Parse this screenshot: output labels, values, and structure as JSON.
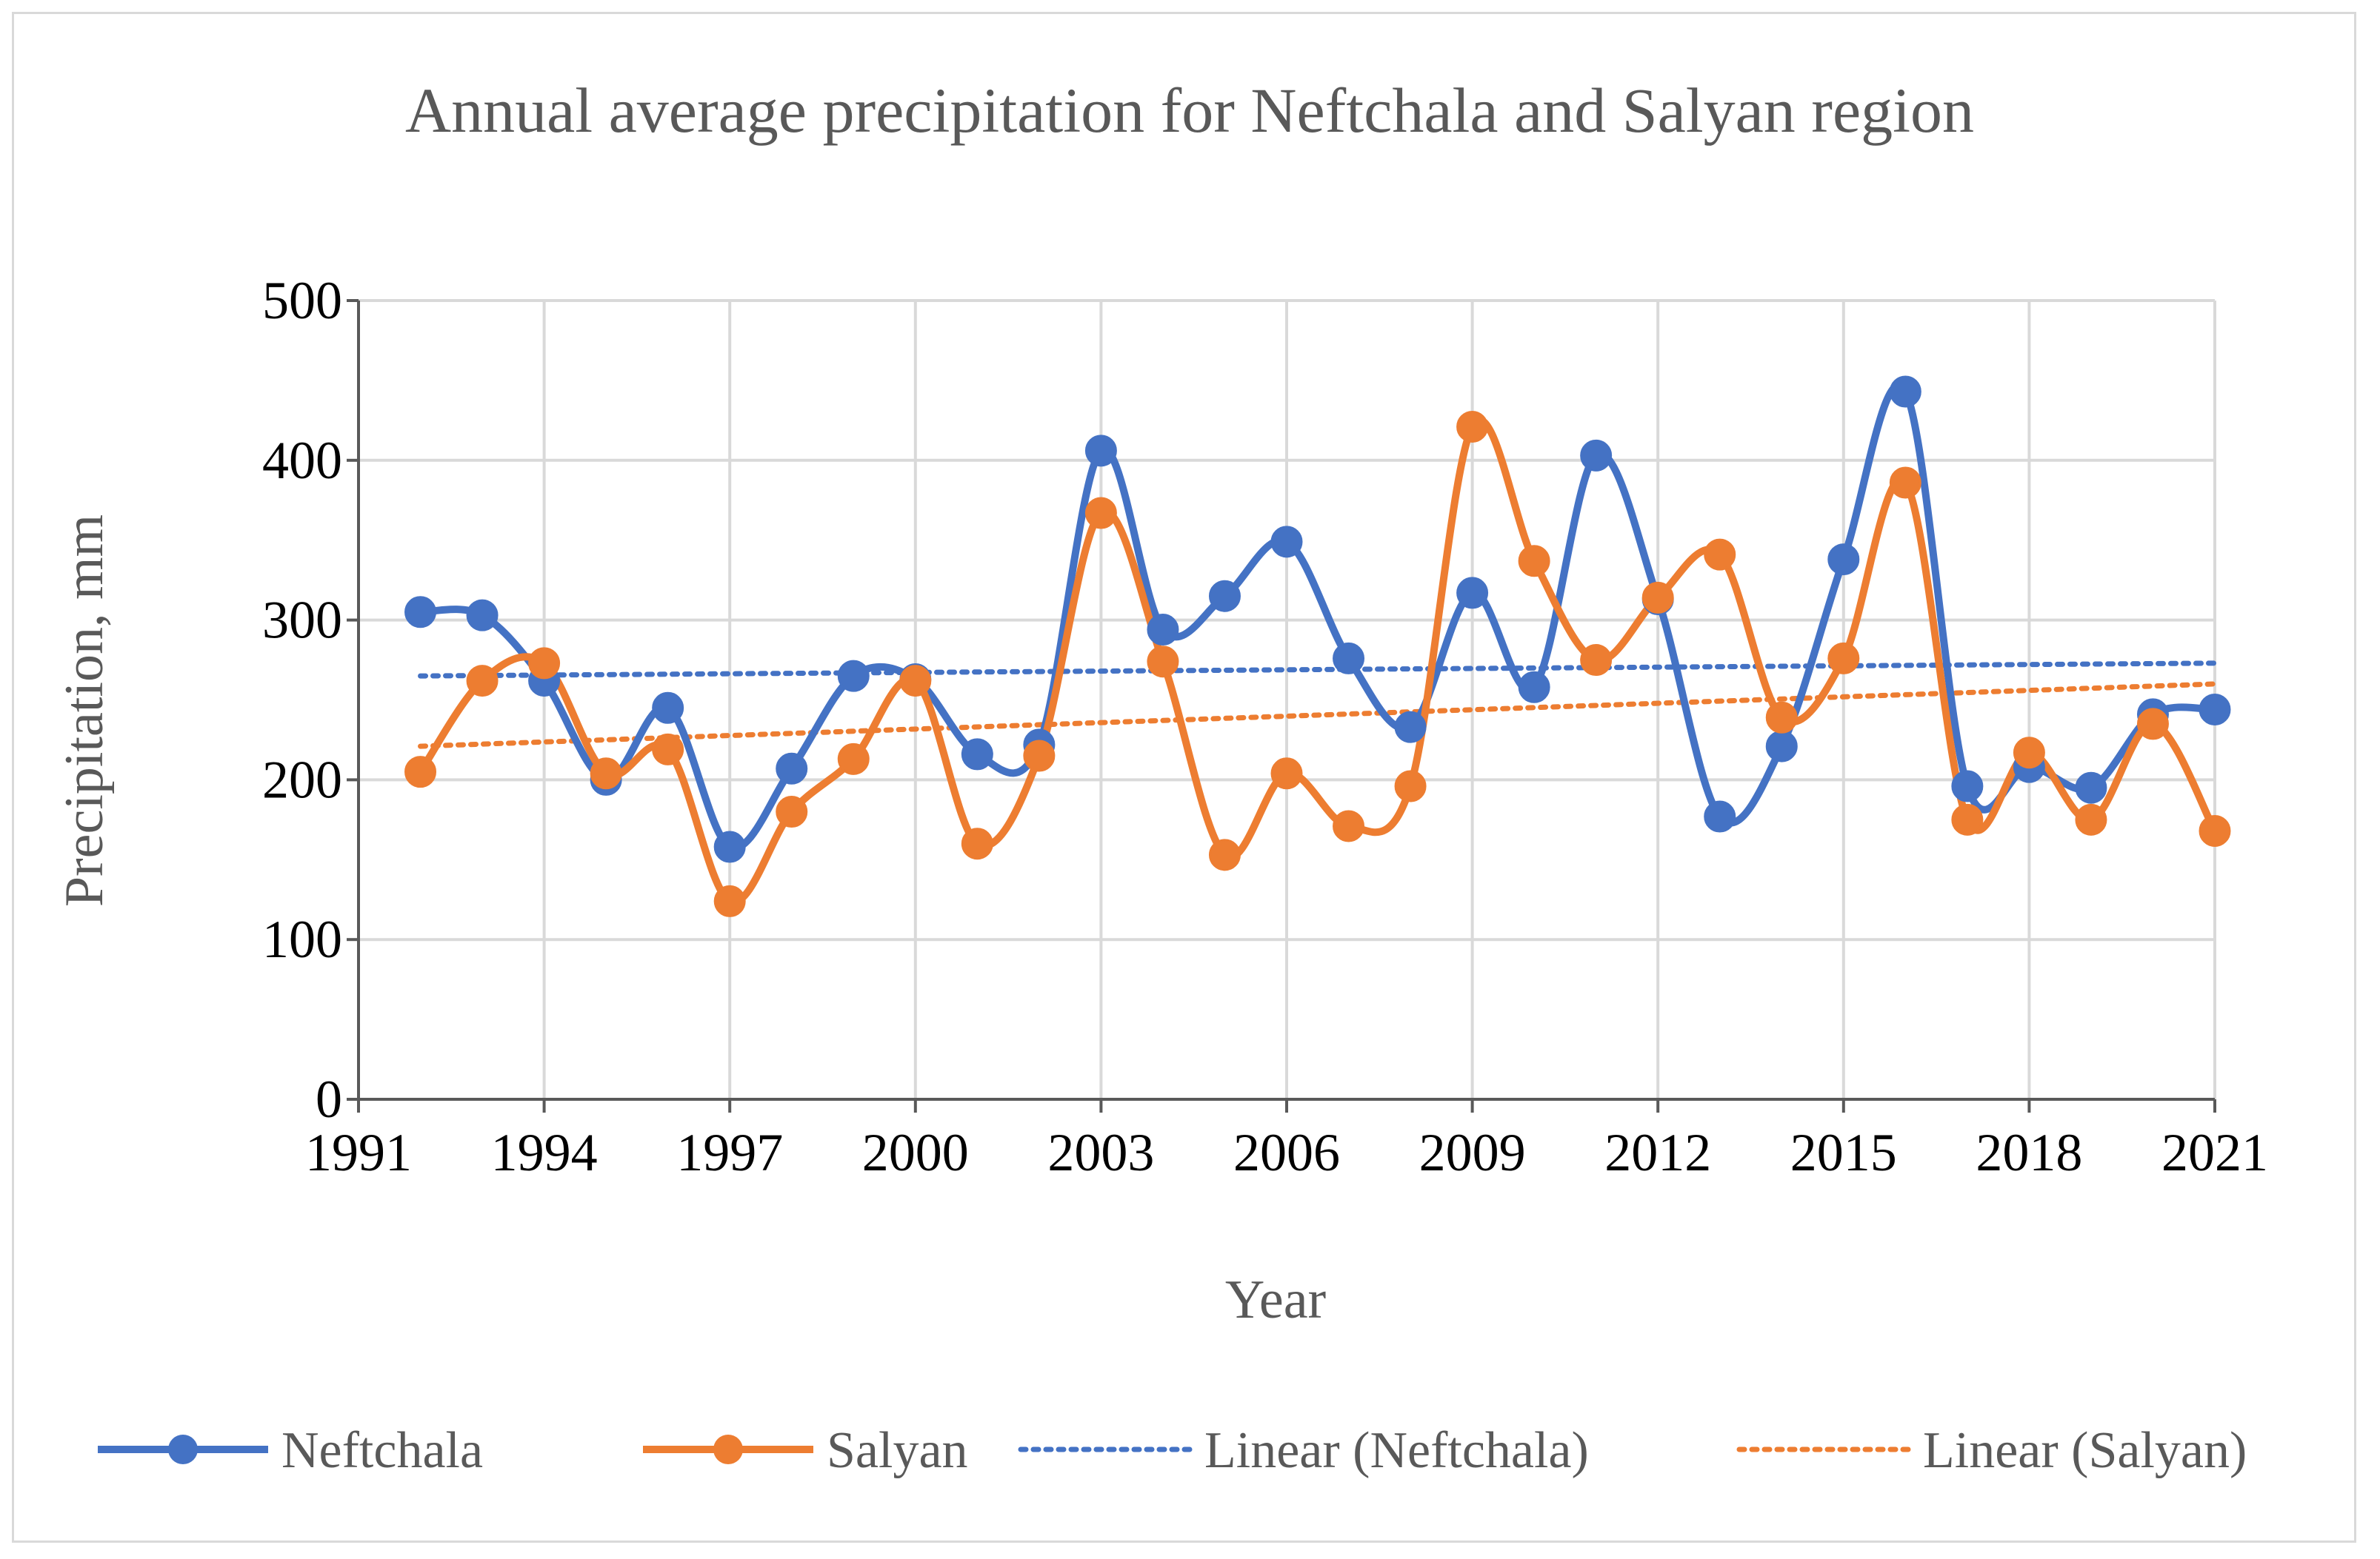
{
  "chart_data": {
    "type": "line",
    "title": "Annual average precipitation for Neftchala and Salyan region",
    "xlabel": "Year",
    "ylabel": "Precipitation, mm",
    "xlim": [
      1991,
      2021
    ],
    "ylim": [
      0,
      500
    ],
    "x_ticks": [
      "1991",
      "1994",
      "1997",
      "2000",
      "2003",
      "2006",
      "2009",
      "2012",
      "2015",
      "2018",
      "2021"
    ],
    "y_ticks": [
      "0",
      "100",
      "200",
      "300",
      "400",
      "500"
    ],
    "grid": true,
    "legend_position": "bottom",
    "x": [
      1992,
      1993,
      1994,
      1995,
      1996,
      1997,
      1998,
      1999,
      2000,
      2001,
      2002,
      2003,
      2004,
      2005,
      2006,
      2007,
      2008,
      2009,
      2010,
      2011,
      2012,
      2013,
      2014,
      2015,
      2016,
      2017,
      2018,
      2019,
      2020,
      2021
    ],
    "series": [
      {
        "name": "Neftchala",
        "color": "#4472C4",
        "values": [
          305,
          303,
          262,
          200,
          245,
          158,
          207,
          265,
          263,
          216,
          222,
          406,
          294,
          315,
          349,
          276,
          233,
          317,
          258,
          403,
          313,
          177,
          221,
          338,
          443,
          196,
          208,
          195,
          241,
          244
        ]
      },
      {
        "name": "Salyan",
        "color": "#ED7D31",
        "values": [
          205,
          262,
          273,
          204,
          219,
          124,
          180,
          213,
          262,
          160,
          215,
          367,
          274,
          153,
          204,
          171,
          196,
          421,
          337,
          275,
          314,
          341,
          239,
          276,
          386,
          175,
          217,
          175,
          235,
          168
        ]
      }
    ],
    "trendlines": [
      {
        "name": "Linear (Neftchala)",
        "color": "#4472C4",
        "start": [
          1992,
          265
        ],
        "end": [
          2021,
          273
        ]
      },
      {
        "name": "Linear (Salyan)",
        "color": "#ED7D31",
        "start": [
          1992,
          221
        ],
        "end": [
          2021,
          260
        ]
      }
    ]
  }
}
